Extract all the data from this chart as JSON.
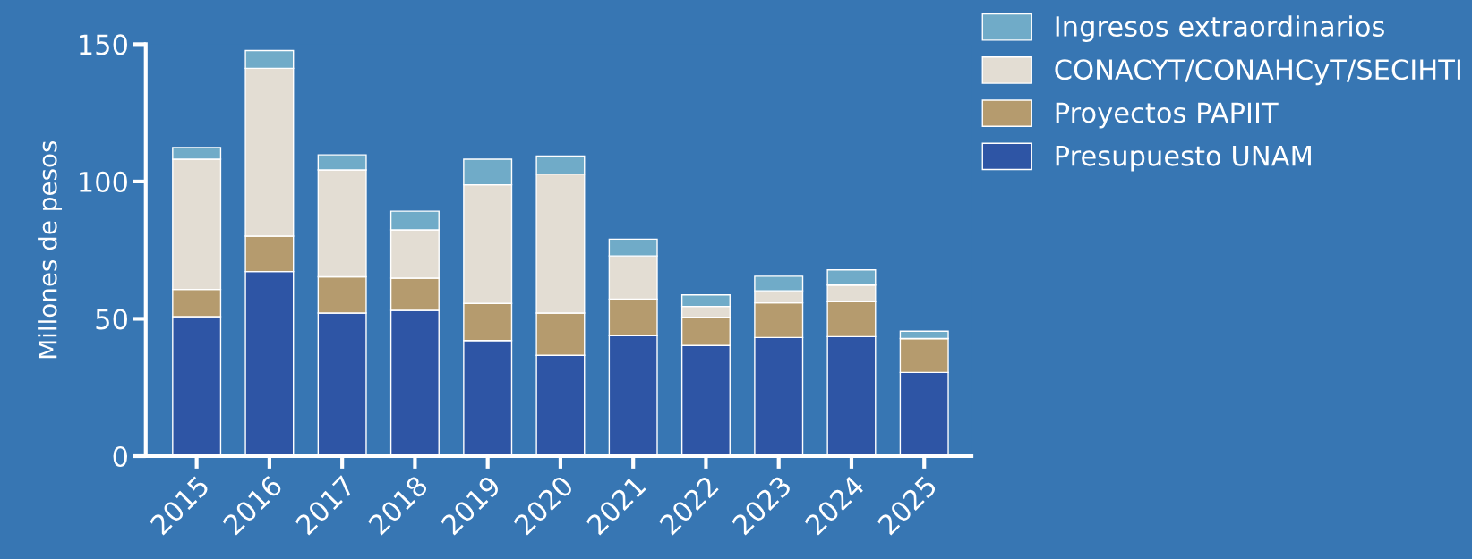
{
  "chart_data": {
    "type": "bar",
    "stacked": true,
    "ylabel": "Millones de pesos",
    "categories": [
      "2015",
      "2016",
      "2017",
      "2018",
      "2019",
      "2020",
      "2021",
      "2022",
      "2023",
      "2024",
      "2025"
    ],
    "series": [
      {
        "name": "Presupuesto UNAM",
        "color": "#2e55a5",
        "values": [
          50.8,
          67.2,
          52.1,
          53.1,
          42.1,
          36.7,
          43.9,
          40.3,
          43.2,
          43.5,
          30.5
        ]
      },
      {
        "name": "Proyectos PAPIIT",
        "color": "#b59b6e",
        "values": [
          9.9,
          12.9,
          13.2,
          11.7,
          13.5,
          15.4,
          13.3,
          10.3,
          12.6,
          12.7,
          12.3
        ]
      },
      {
        "name": "CONACYT/CONAHCyT/SECIHTI",
        "color": "#e3ddd3",
        "values": [
          47.4,
          61.1,
          38.9,
          17.6,
          43.2,
          50.6,
          15.7,
          3.9,
          4.4,
          6.1,
          0
        ]
      },
      {
        "name": "Ingresos extraordinarios",
        "color": "#70abc8",
        "values": [
          4.3,
          6.5,
          5.5,
          6.8,
          9.3,
          6.6,
          6.1,
          4.2,
          5.3,
          5.5,
          2.7
        ]
      }
    ],
    "ylim": [
      0,
      150
    ],
    "yticks": [
      0,
      50,
      100,
      150
    ],
    "grid": false,
    "legend": "top right"
  }
}
